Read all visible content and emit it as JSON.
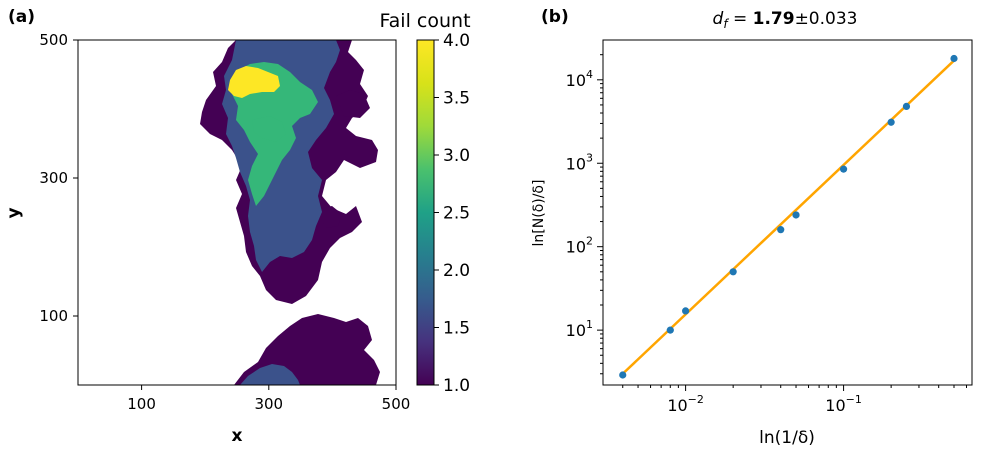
{
  "panels": {
    "a": {
      "label": "(a)"
    },
    "b": {
      "label": "(b)"
    }
  },
  "colors": {
    "viridis_low": "#440154",
    "viridis_mid_blue": "#3b528b",
    "viridis_teal": "#21918c",
    "viridis_green": "#5ec962",
    "viridis_high": "#fde725",
    "scatter": "#1f77b4",
    "fit_line": "#ffa500"
  },
  "chart_data": [
    {
      "type": "heatmap",
      "xlabel": "x",
      "ylabel": "y",
      "xlim": [
        0,
        500
      ],
      "ylim": [
        0,
        500
      ],
      "xticks": [
        "100",
        "300",
        "500"
      ],
      "yticks": [
        "100",
        "300",
        "500"
      ],
      "colorbar": {
        "label": "Fail count",
        "range": [
          1.0,
          4.0
        ],
        "ticks": [
          "1.0",
          "1.5",
          "2.0",
          "2.5",
          "3.0",
          "3.5",
          "4.0"
        ],
        "colormap": "viridis"
      },
      "description_values": {
        "max_fail_region_value": 4.0,
        "background_value": 1.0
      }
    },
    {
      "type": "scatter",
      "title_prefix": "d",
      "title_sub": "f",
      "title_value": "1.79",
      "title_err": "±0.033",
      "xlabel": "ln(1/δ)",
      "ylabel": "ln[N(δ)/δ]",
      "xscale": "log",
      "yscale": "log",
      "xlim": [
        0.003,
        0.65
      ],
      "ylim": [
        2.2,
        30000
      ],
      "xticks": [
        {
          "value": 0.01,
          "base": "10",
          "exp": "−2"
        },
        {
          "value": 0.1,
          "base": "10",
          "exp": "−1"
        }
      ],
      "yticks": [
        {
          "value": 10,
          "base": "10",
          "exp": "1"
        },
        {
          "value": 100,
          "base": "10",
          "exp": "2"
        },
        {
          "value": 1000,
          "base": "10",
          "exp": "3"
        },
        {
          "value": 10000,
          "base": "10",
          "exp": "4"
        }
      ],
      "x": [
        0.004,
        0.008,
        0.01,
        0.02,
        0.04,
        0.05,
        0.1,
        0.2,
        0.25,
        0.5
      ],
      "y": [
        2.9,
        10,
        17,
        50,
        160,
        240,
        850,
        3100,
        4800,
        18000
      ],
      "fit": {
        "exponent": 1.79,
        "x0": 0.004,
        "y0": 3.0
      }
    }
  ]
}
